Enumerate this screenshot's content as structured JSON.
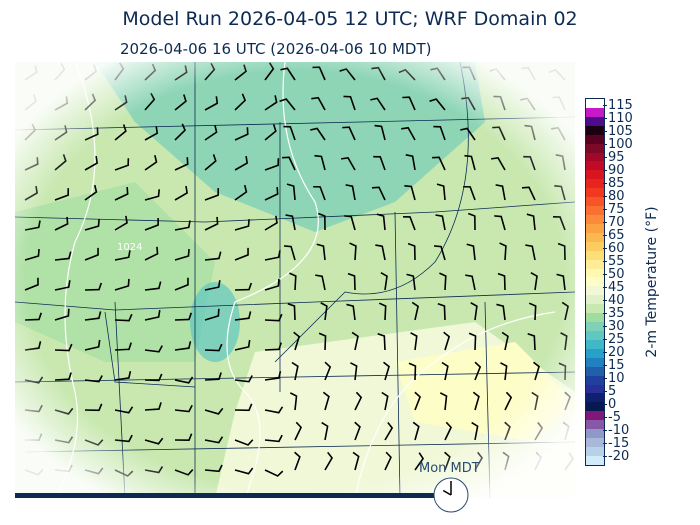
{
  "title": "Model Run 2026-04-05 12 UTC; WRF Domain 02",
  "subtitle": "2026-04-06 16 UTC  (2026-04-06 10 MDT)",
  "colorbar": {
    "label": "2-m Temperature (°F)",
    "ticks": [
      "115",
      "110",
      "105",
      "100",
      "95",
      "90",
      "85",
      "80",
      "75",
      "70",
      "65",
      "60",
      "55",
      "50",
      "45",
      "40",
      "35",
      "30",
      "25",
      "20",
      "15",
      "10",
      "5",
      "0",
      "-5",
      "-10",
      "-15",
      "-20"
    ],
    "colors_top_to_bottom": [
      "#ffffff",
      "#c61ac8",
      "#4b0d8c",
      "#1a0010",
      "#5a0020",
      "#7a0a28",
      "#a00a28",
      "#c00a28",
      "#d8141e",
      "#e8241e",
      "#f03a20",
      "#f85428",
      "#fa7030",
      "#fb8a3a",
      "#fca244",
      "#fcb850",
      "#fdcc60",
      "#fede78",
      "#feec96",
      "#fef8b0",
      "#fdfdc8",
      "#f0f8d8",
      "#e0f0c8",
      "#c8e8b0",
      "#a0dca0",
      "#80d0b8",
      "#60c8c0",
      "#40b8c8",
      "#28a0c8",
      "#2080c0",
      "#2060a8",
      "#2040a0",
      "#283098",
      "#102070",
      "#081850",
      "#801878",
      "#8858a8",
      "#9098c8",
      "#a8b8d8",
      "#b8d0e8",
      "#d0ecfc"
    ]
  },
  "clock": {
    "label": "Mon MDT",
    "hour": 10
  },
  "map": {
    "contour_label": "1024"
  }
}
